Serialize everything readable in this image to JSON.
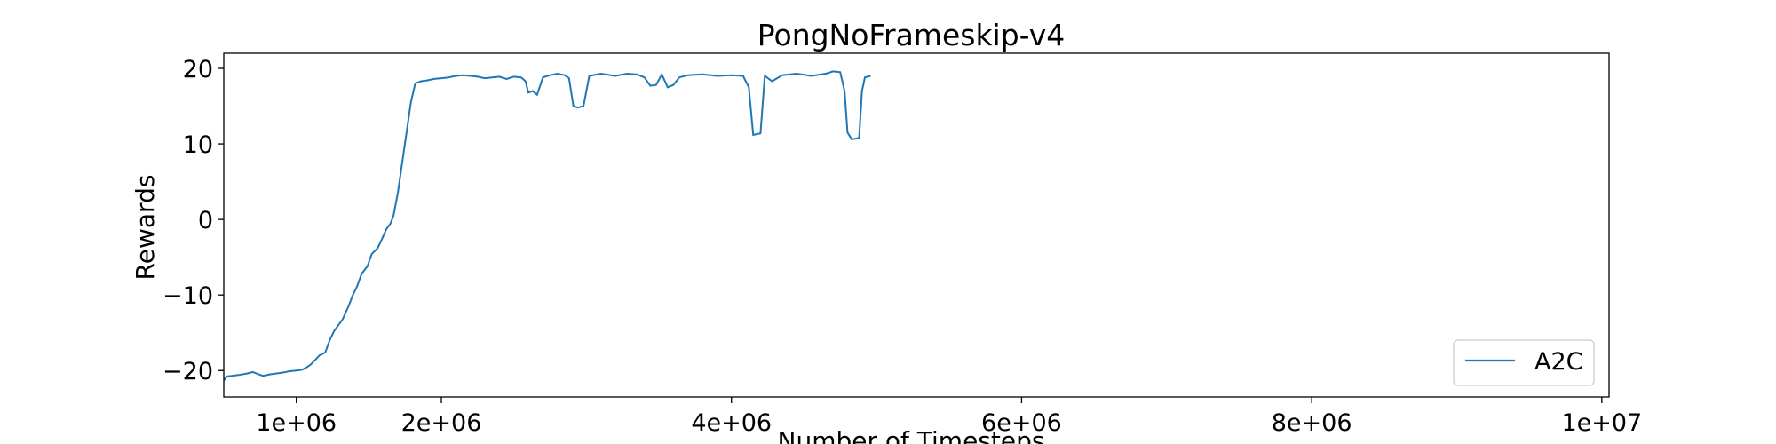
{
  "chart_data": {
    "type": "line",
    "title": "PongNoFrameskip-v4",
    "xlabel": "Number of Timesteps",
    "ylabel": "Rewards",
    "xlim": [
      500000,
      10050000
    ],
    "ylim": [
      -23.5,
      22.0
    ],
    "xticks": [
      {
        "value": 1000000,
        "label": "1e+06"
      },
      {
        "value": 2000000,
        "label": "2e+06"
      },
      {
        "value": 4000000,
        "label": "4e+06"
      },
      {
        "value": 6000000,
        "label": "6e+06"
      },
      {
        "value": 8000000,
        "label": "8e+06"
      },
      {
        "value": 10000000,
        "label": "1e+07"
      }
    ],
    "yticks": [
      {
        "value": 20,
        "label": "20"
      },
      {
        "value": 10,
        "label": "10"
      },
      {
        "value": 0,
        "label": "0"
      },
      {
        "value": -10,
        "label": "−10"
      },
      {
        "value": -20,
        "label": "−20"
      }
    ],
    "grid": false,
    "legend_position": "lower-right",
    "series": [
      {
        "name": "A2C",
        "color": "#1f77b4",
        "points": [
          [
            500000,
            -21.3
          ],
          [
            520000,
            -20.8
          ],
          [
            600000,
            -20.6
          ],
          [
            660000,
            -20.4
          ],
          [
            700000,
            -20.2
          ],
          [
            740000,
            -20.5
          ],
          [
            770000,
            -20.7
          ],
          [
            820000,
            -20.5
          ],
          [
            900000,
            -20.3
          ],
          [
            950000,
            -20.1
          ],
          [
            1000000,
            -20.0
          ],
          [
            1040000,
            -19.9
          ],
          [
            1070000,
            -19.6
          ],
          [
            1100000,
            -19.2
          ],
          [
            1130000,
            -18.6
          ],
          [
            1160000,
            -18.0
          ],
          [
            1200000,
            -17.6
          ],
          [
            1230000,
            -16.0
          ],
          [
            1260000,
            -14.8
          ],
          [
            1290000,
            -14.0
          ],
          [
            1320000,
            -13.2
          ],
          [
            1360000,
            -11.5
          ],
          [
            1390000,
            -10.0
          ],
          [
            1420000,
            -8.8
          ],
          [
            1450000,
            -7.2
          ],
          [
            1490000,
            -6.2
          ],
          [
            1520000,
            -4.6
          ],
          [
            1560000,
            -3.8
          ],
          [
            1590000,
            -2.6
          ],
          [
            1620000,
            -1.3
          ],
          [
            1650000,
            -0.5
          ],
          [
            1670000,
            0.5
          ],
          [
            1700000,
            3.5
          ],
          [
            1730000,
            7.5
          ],
          [
            1760000,
            11.5
          ],
          [
            1790000,
            15.5
          ],
          [
            1820000,
            18.0
          ],
          [
            1860000,
            18.3
          ],
          [
            1900000,
            18.4
          ],
          [
            1950000,
            18.6
          ],
          [
            2000000,
            18.7
          ],
          [
            2050000,
            18.8
          ],
          [
            2100000,
            19.0
          ],
          [
            2150000,
            19.1
          ],
          [
            2200000,
            19.0
          ],
          [
            2250000,
            18.9
          ],
          [
            2300000,
            18.7
          ],
          [
            2350000,
            18.8
          ],
          [
            2400000,
            18.9
          ],
          [
            2450000,
            18.6
          ],
          [
            2500000,
            18.9
          ],
          [
            2550000,
            18.8
          ],
          [
            2580000,
            18.3
          ],
          [
            2600000,
            16.8
          ],
          [
            2630000,
            17.0
          ],
          [
            2660000,
            16.5
          ],
          [
            2700000,
            18.8
          ],
          [
            2750000,
            19.1
          ],
          [
            2800000,
            19.3
          ],
          [
            2850000,
            19.1
          ],
          [
            2880000,
            18.7
          ],
          [
            2910000,
            15.0
          ],
          [
            2940000,
            14.8
          ],
          [
            2980000,
            15.0
          ],
          [
            3020000,
            19.0
          ],
          [
            3100000,
            19.3
          ],
          [
            3200000,
            19.0
          ],
          [
            3280000,
            19.3
          ],
          [
            3350000,
            19.2
          ],
          [
            3400000,
            18.8
          ],
          [
            3440000,
            17.7
          ],
          [
            3480000,
            17.8
          ],
          [
            3520000,
            19.2
          ],
          [
            3560000,
            17.5
          ],
          [
            3600000,
            17.8
          ],
          [
            3640000,
            18.8
          ],
          [
            3700000,
            19.1
          ],
          [
            3800000,
            19.2
          ],
          [
            3900000,
            19.0
          ],
          [
            4000000,
            19.1
          ],
          [
            4080000,
            19.0
          ],
          [
            4120000,
            17.5
          ],
          [
            4150000,
            11.2
          ],
          [
            4200000,
            11.4
          ],
          [
            4230000,
            19.0
          ],
          [
            4280000,
            18.3
          ],
          [
            4350000,
            19.1
          ],
          [
            4450000,
            19.3
          ],
          [
            4550000,
            19.0
          ],
          [
            4650000,
            19.3
          ],
          [
            4700000,
            19.6
          ],
          [
            4750000,
            19.5
          ],
          [
            4780000,
            17.0
          ],
          [
            4800000,
            11.5
          ],
          [
            4830000,
            10.6
          ],
          [
            4880000,
            10.8
          ],
          [
            4900000,
            17.0
          ],
          [
            4920000,
            18.8
          ],
          [
            4960000,
            19.0
          ]
        ]
      }
    ]
  }
}
